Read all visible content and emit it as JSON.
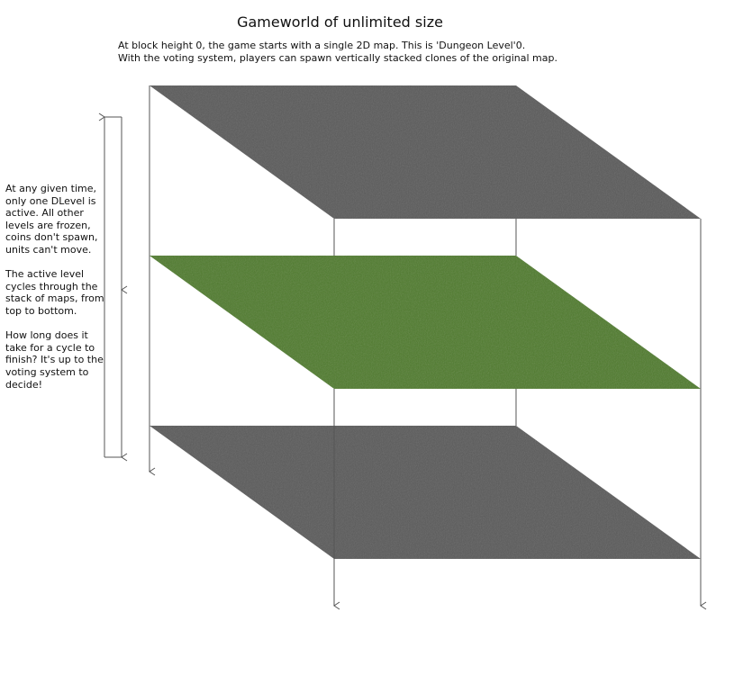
{
  "title": "Gameworld of unlimited size",
  "intro": [
    "At block height 0, the game starts with a single 2D map. This is 'Dungeon Level'0.",
    "With the voting system, players can spawn vertically stacked clones of the original map."
  ],
  "sidenote": [
    "At any given time, only one DLevel is active. All other levels are frozen, coins don't spawn, units can't move.",
    "The active level cycles through the stack of maps, from top to bottom.",
    "How long does it take for a cycle to finish? It's up to the voting system to decide!"
  ],
  "colors": {
    "inactive_level": "#5a5a5a",
    "active_level": "#4e7a2c",
    "lines": "#555555"
  },
  "levels": [
    {
      "state": "inactive"
    },
    {
      "state": "active"
    },
    {
      "state": "inactive"
    }
  ]
}
